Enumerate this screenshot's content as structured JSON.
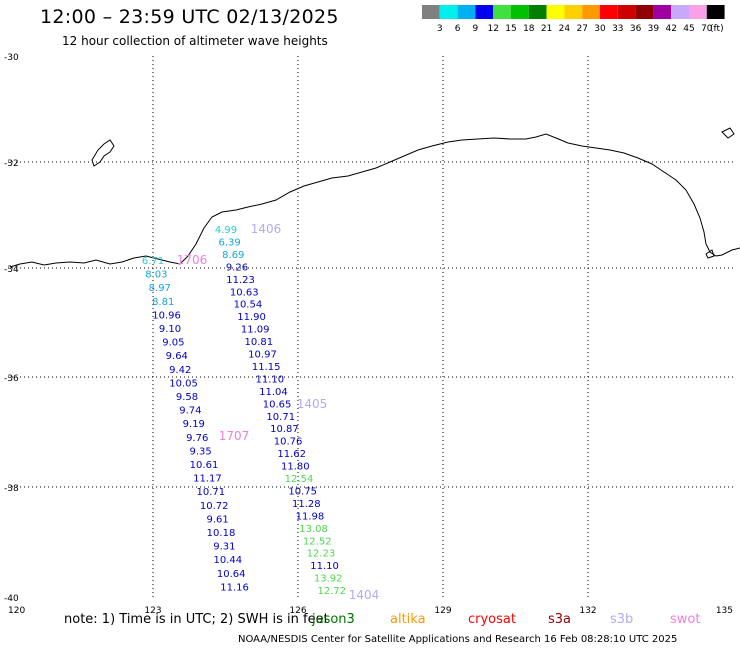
{
  "header": {
    "title": "12:00 – 23:59 UTC 02/13/2025",
    "subtitle": "12 hour collection of altimeter wave heights"
  },
  "legend": {
    "unit": "(ft)",
    "colors": [
      "#808080",
      "#00eeee",
      "#00b0f0",
      "#0000ee",
      "#40e040",
      "#00c000",
      "#008000",
      "#ffff00",
      "#ffd000",
      "#ff9900",
      "#ff0000",
      "#d00000",
      "#900000",
      "#a000a0",
      "#c8a8f8",
      "#f8a0e8",
      "#000000"
    ],
    "labels": [
      "3",
      "6",
      "9",
      "12",
      "15",
      "18",
      "21",
      "24",
      "27",
      "30",
      "33",
      "36",
      "39",
      "42",
      "45",
      "70"
    ]
  },
  "axes": {
    "lon_ticks": [
      "120",
      "123",
      "126",
      "129",
      "132",
      "135"
    ],
    "lat_ticks": [
      "-30",
      "-32",
      "-34",
      "-36",
      "-38",
      "-40"
    ]
  },
  "passes": [
    {
      "label": "1706",
      "color": "#f080e0"
    },
    {
      "label": "1406",
      "color": "#b8a8f0"
    },
    {
      "label": "1405",
      "color": "#b8a8f0"
    },
    {
      "label": "1707",
      "color": "#f080e0"
    },
    {
      "label": "1404",
      "color": "#b8a8f0"
    }
  ],
  "track_left": {
    "values": [
      "6.71",
      "8.03",
      "8.97",
      "8.81",
      "10.96",
      "9.10",
      "9.05",
      "9.64",
      "9.42",
      "10.05",
      "9.58",
      "9.74",
      "9.19",
      "9.76",
      "9.35",
      "10.61",
      "11.17",
      "10.71",
      "10.72",
      "9.61",
      "10.18",
      "9.31",
      "10.44",
      "10.64",
      "11.16"
    ],
    "colors": [
      "cyan",
      "lb",
      "lb",
      "lb",
      "db",
      "db",
      "db",
      "db",
      "db",
      "db",
      "db",
      "db",
      "db",
      "db",
      "db",
      "db",
      "db",
      "db",
      "db",
      "db",
      "db",
      "db",
      "db",
      "db",
      "db"
    ]
  },
  "track_right": {
    "values": [
      "4.99",
      "6.39",
      "8.69",
      "9.26",
      "11.23",
      "10.63",
      "10.54",
      "11.90",
      "11.09",
      "10.81",
      "10.97",
      "11.15",
      "11.10",
      "11.04",
      "10.65",
      "10.71",
      "10.87",
      "10.76",
      "11.62",
      "11.80",
      "12.54",
      "10.75",
      "11.28",
      "11.98",
      "13.08",
      "12.52",
      "12.23",
      "11.10",
      "13.92",
      "12.72"
    ],
    "colors": [
      "cyan",
      "lb",
      "lb",
      "db",
      "db",
      "db",
      "db",
      "db",
      "db",
      "db",
      "db",
      "db",
      "db",
      "db",
      "db",
      "db",
      "db",
      "db",
      "db",
      "db",
      "lg",
      "db",
      "db",
      "db",
      "lg",
      "lg",
      "lg",
      "db",
      "lg",
      "lg"
    ]
  },
  "track_colors": {
    "cyan": "#20d0d0",
    "lb": "#10a8d8",
    "db": "#0000c8",
    "lg": "#50d850"
  },
  "footer": {
    "note": "note:  1) Time is in UTC; 2) SWH is in feet",
    "credit": "NOAA/NESDIS Center for Satellite Applications and Research     16 Feb 08:28:10 UTC 2025",
    "satellites": [
      {
        "name": "jason3",
        "color": "#007000"
      },
      {
        "name": "altika",
        "color": "#ff9900"
      },
      {
        "name": "cryosat",
        "color": "#ff0000"
      },
      {
        "name": "s3a",
        "color": "#900000"
      },
      {
        "name": "s3b",
        "color": "#b8a8f0"
      },
      {
        "name": "swot",
        "color": "#f080e0"
      }
    ]
  }
}
